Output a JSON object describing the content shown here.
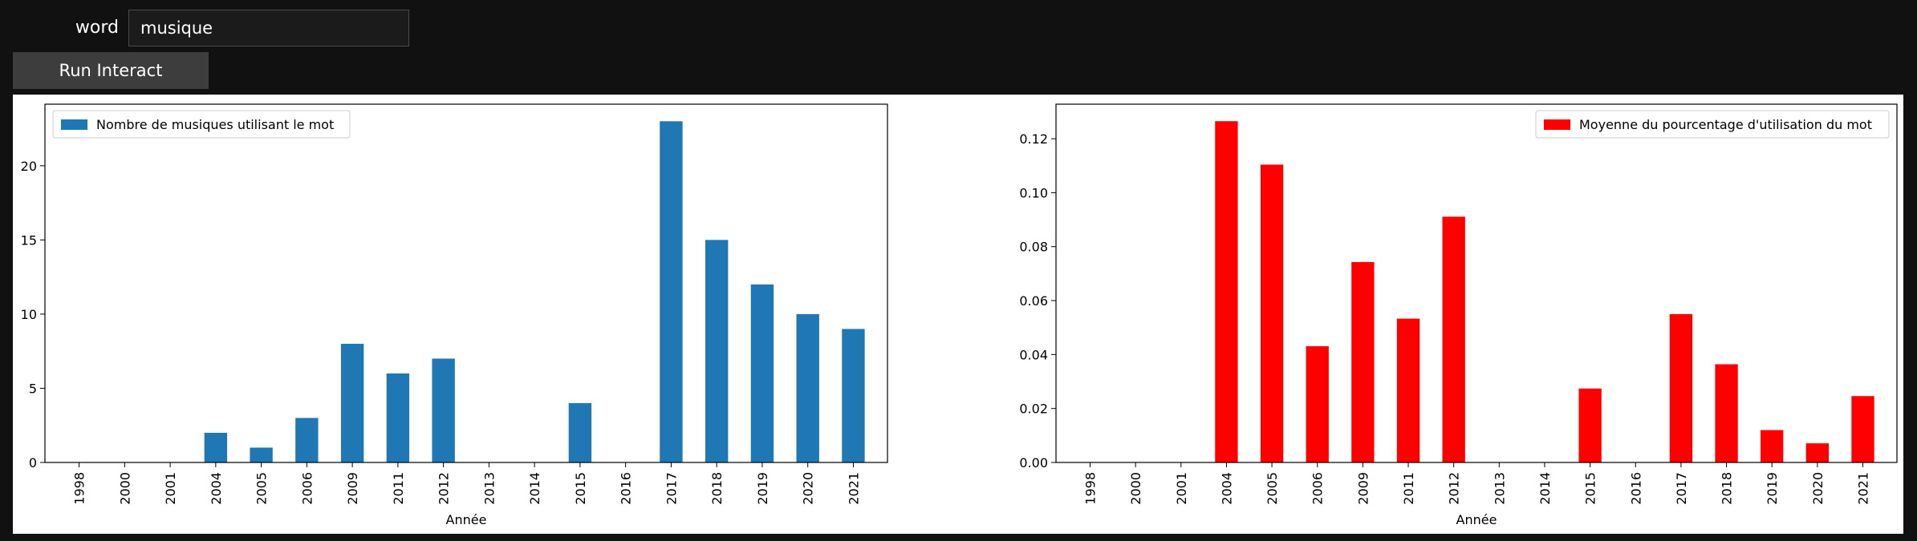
{
  "controls": {
    "word_label": "word",
    "word_value": "musique",
    "run_label": "Run Interact"
  },
  "chart_data": [
    {
      "type": "bar",
      "categories": [
        "1998",
        "2000",
        "2001",
        "2004",
        "2005",
        "2006",
        "2009",
        "2011",
        "2012",
        "2013",
        "2014",
        "2015",
        "2016",
        "2017",
        "2018",
        "2019",
        "2020",
        "2021"
      ],
      "series": [
        {
          "name": "Nombre de musiques utilisant le mot",
          "values": [
            0,
            0,
            0,
            2,
            1,
            3,
            8,
            6,
            7,
            0,
            0,
            4,
            0,
            23,
            15,
            12,
            10,
            9
          ],
          "color": "#1f77b4"
        }
      ],
      "xlabel": "Année",
      "ylabel": "",
      "ylim": [
        0,
        24.15
      ],
      "yticks": [
        0,
        5,
        10,
        15,
        20
      ],
      "ytick_labels": [
        "0",
        "5",
        "10",
        "15",
        "20"
      ],
      "legend_position": "upper left",
      "grid": false
    },
    {
      "type": "bar",
      "categories": [
        "1998",
        "2000",
        "2001",
        "2004",
        "2005",
        "2006",
        "2009",
        "2011",
        "2012",
        "2013",
        "2014",
        "2015",
        "2016",
        "2017",
        "2018",
        "2019",
        "2020",
        "2021"
      ],
      "series": [
        {
          "name": "Moyenne du pourcentage d'utilisation du mot",
          "values": [
            0,
            0,
            0,
            0.1265,
            0.1104,
            0.0431,
            0.0743,
            0.0533,
            0.0911,
            0,
            0,
            0.0274,
            0,
            0.055,
            0.0364,
            0.012,
            0.0071,
            0.0246
          ],
          "color": "#ff0000"
        }
      ],
      "xlabel": "Année",
      "ylabel": "",
      "ylim": [
        0,
        0.1328
      ],
      "yticks": [
        0,
        0.02,
        0.04,
        0.06,
        0.08,
        0.1,
        0.12
      ],
      "ytick_labels": [
        "0.00",
        "0.02",
        "0.04",
        "0.06",
        "0.08",
        "0.10",
        "0.12"
      ],
      "legend_position": "upper right",
      "grid": false
    }
  ]
}
